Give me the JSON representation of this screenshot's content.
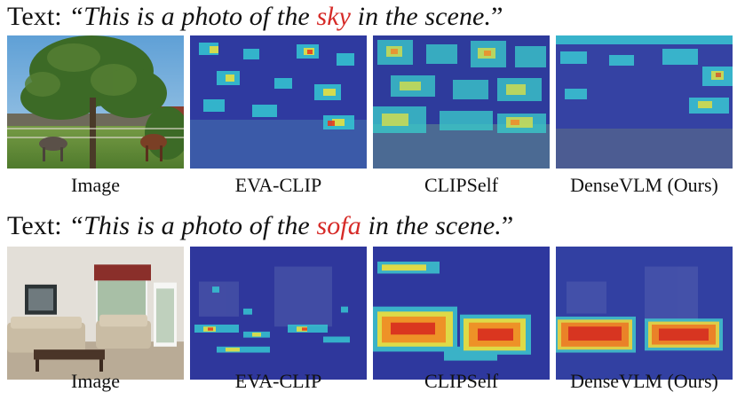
{
  "rows": [
    {
      "caption_prefix": "Text: ",
      "quote_open": "“This is a photo of the ",
      "keyword": "sky",
      "quote_close": " in the scene.",
      "quote_end": "”",
      "columns": [
        "Image",
        "EVA-CLIP",
        "CLIPSelf",
        "DenseVLM (Ours)"
      ]
    },
    {
      "caption_prefix": "Text: ",
      "quote_open": "“This is a photo of the ",
      "keyword": "sofa",
      "quote_close": " in the scene.",
      "quote_end": "”",
      "columns": [
        "Image",
        "EVA-CLIP",
        "CLIPSelf",
        "DenseVLM (Ours)"
      ]
    }
  ],
  "colors": {
    "keyword": "#d62a27",
    "heatmap_low": "#2a2f9e",
    "heatmap_mid": "#31c7d6",
    "heatmap_high": "#e8341c"
  }
}
